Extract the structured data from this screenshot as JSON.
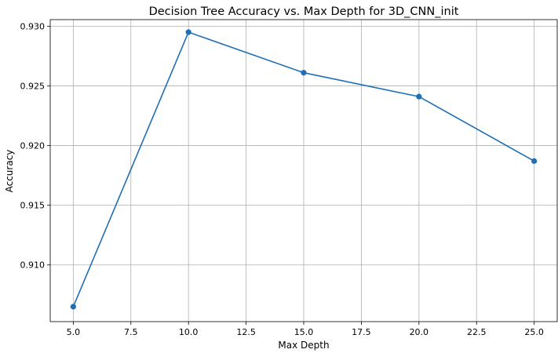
{
  "chart_data": {
    "type": "line",
    "title": "Decision Tree Accuracy vs. Max Depth for 3D_CNN_init",
    "xlabel": "Max Depth",
    "ylabel": "Accuracy",
    "xlim": [
      4.0,
      26.0
    ],
    "ylim": [
      0.90525,
      0.93055
    ],
    "xticks": [
      5.0,
      7.5,
      10.0,
      12.5,
      15.0,
      17.5,
      20.0,
      22.5,
      25.0
    ],
    "xtick_labels": [
      "5.0",
      "7.5",
      "10.0",
      "12.5",
      "15.0",
      "17.5",
      "20.0",
      "22.5",
      "25.0"
    ],
    "yticks": [
      0.91,
      0.915,
      0.92,
      0.925,
      0.93
    ],
    "ytick_labels": [
      "0.910",
      "0.915",
      "0.920",
      "0.925",
      "0.930"
    ],
    "grid": true,
    "color": "#1f6fb4",
    "series": [
      {
        "x": [
          5,
          10,
          15,
          20,
          25
        ],
        "values": [
          0.9065,
          0.9295,
          0.9261,
          0.9241,
          0.9187
        ],
        "marker": "circle"
      }
    ]
  }
}
